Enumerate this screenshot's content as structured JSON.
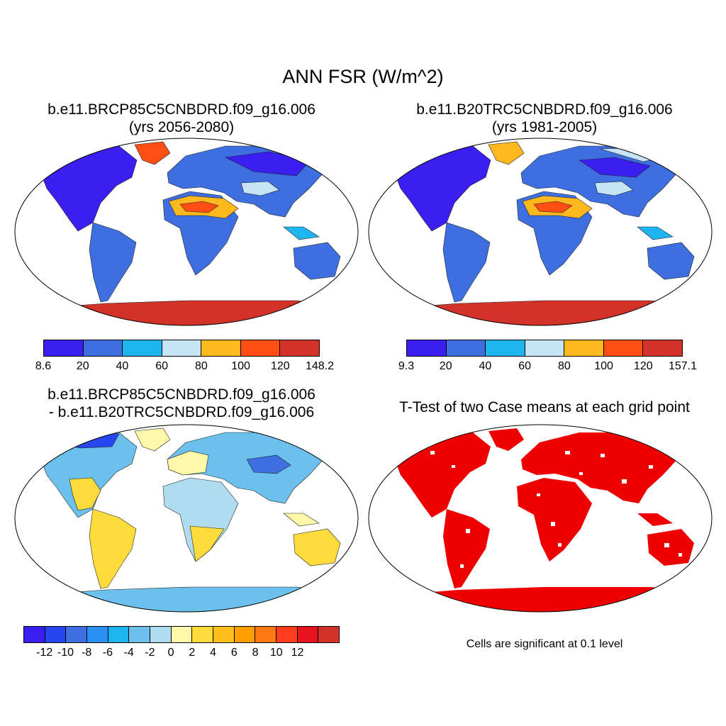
{
  "figure": {
    "title": "ANN FSR (W/m^2)"
  },
  "panels": [
    {
      "title_line1": "b.e11.BRCP85C5CNBDRD.f09_g16.006",
      "title_line2": "(yrs 2056-2080)",
      "colorbar": {
        "colors": [
          "#3a1ff0",
          "#3d6fe0",
          "#1eb4f0",
          "#c6e4f6",
          "#ffb81e",
          "#ff4e14",
          "#d23228"
        ],
        "tick_labels": [
          "8.6",
          "20",
          "40",
          "60",
          "80",
          "100",
          "120",
          "148.2"
        ]
      }
    },
    {
      "title_line1": "b.e11.B20TRC5CNBDRD.f09_g16.006",
      "title_line2": "(yrs 1981-2005)",
      "colorbar": {
        "colors": [
          "#3a1ff0",
          "#3d6fe0",
          "#1eb4f0",
          "#c6e4f6",
          "#ffb81e",
          "#ff4e14",
          "#d23228"
        ],
        "tick_labels": [
          "9.3",
          "20",
          "40",
          "60",
          "80",
          "100",
          "120",
          "157.1"
        ]
      }
    },
    {
      "title_line1": "b.e11.BRCP85C5CNBDRD.f09_g16.006",
      "title_line2": "- b.e11.B20TRC5CNBDRD.f09_g16.006",
      "colorbar": {
        "colors": [
          "#3a1ff0",
          "#2646f0",
          "#3d6fe0",
          "#2a90f5",
          "#1eb4f0",
          "#6cc0ec",
          "#b0dcf0",
          "#fff8a8",
          "#ffdc3c",
          "#ffc01e",
          "#ffa000",
          "#ff7814",
          "#ff3c1e",
          "#e6141e",
          "#d23228"
        ],
        "tick_labels": [
          "-12",
          "-10",
          "-8",
          "-6",
          "-4",
          "-2",
          "0",
          "2",
          "4",
          "6",
          "8",
          "10",
          "12"
        ]
      }
    },
    {
      "title_line1": "T-Test of two Case means at each grid point",
      "note": "Cells are significant at 0.1 level"
    }
  ]
}
